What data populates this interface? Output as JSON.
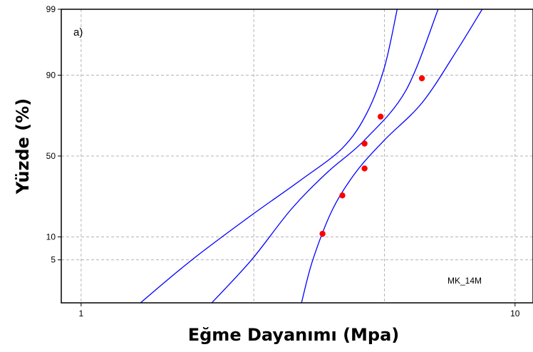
{
  "chart_data": {
    "type": "line",
    "panel_label": "a)",
    "annotation": "MK_14M",
    "xlabel": "Eğme Dayanımı (Mpa)",
    "ylabel": "Yüzde (%)",
    "x_scale": "log",
    "y_scale": "normal-probability",
    "xlim": [
      0.9,
      11
    ],
    "ylim": [
      1,
      99
    ],
    "x_ticks": [
      1,
      10
    ],
    "x_tick_labels": [
      "1",
      "10"
    ],
    "x_gridlines": [
      1,
      2.5,
      5,
      10
    ],
    "y_ticks": [
      5,
      10,
      50,
      90,
      99
    ],
    "y_tick_labels": [
      "5",
      "10",
      "50",
      "90",
      "99"
    ],
    "y_gridlines": [
      5,
      10,
      50,
      90
    ],
    "grid": true,
    "colors": {
      "points": "#ff0000",
      "lines": "#0000ff",
      "grid": "#b4b4b4",
      "frame": "#000000"
    },
    "points": [
      {
        "x": 3.6,
        "y": 10.9
      },
      {
        "x": 4.0,
        "y": 26.6
      },
      {
        "x": 4.5,
        "y": 42.2
      },
      {
        "x": 4.5,
        "y": 57.8
      },
      {
        "x": 4.9,
        "y": 73.4
      },
      {
        "x": 6.1,
        "y": 89.1
      }
    ],
    "series": [
      {
        "role": "fit",
        "values": [
          {
            "x": 2.0,
            "y": 1
          },
          {
            "x": 2.47,
            "y": 5
          },
          {
            "x": 3.05,
            "y": 20
          },
          {
            "x": 3.7,
            "y": 40
          },
          {
            "x": 4.5,
            "y": 60
          },
          {
            "x": 5.6,
            "y": 85
          },
          {
            "x": 6.65,
            "y": 99
          }
        ]
      },
      {
        "role": "lower-bound",
        "values": [
          {
            "x": 1.37,
            "y": 1
          },
          {
            "x": 1.8,
            "y": 5
          },
          {
            "x": 2.45,
            "y": 17
          },
          {
            "x": 3.2,
            "y": 35
          },
          {
            "x": 4.0,
            "y": 55
          },
          {
            "x": 4.55,
            "y": 75
          },
          {
            "x": 5.0,
            "y": 92
          },
          {
            "x": 5.35,
            "y": 99
          }
        ]
      },
      {
        "role": "upper-bound",
        "values": [
          {
            "x": 3.22,
            "y": 1
          },
          {
            "x": 3.42,
            "y": 5
          },
          {
            "x": 3.8,
            "y": 20
          },
          {
            "x": 4.3,
            "y": 40
          },
          {
            "x": 5.0,
            "y": 60
          },
          {
            "x": 6.1,
            "y": 80
          },
          {
            "x": 7.3,
            "y": 95
          },
          {
            "x": 8.4,
            "y": 99
          }
        ]
      }
    ]
  }
}
